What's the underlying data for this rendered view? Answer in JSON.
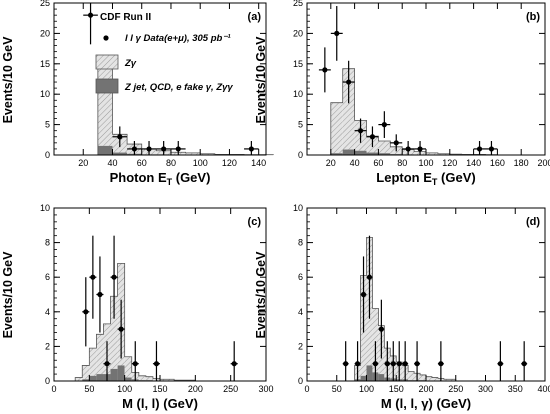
{
  "figure": {
    "legend": {
      "title": "CDF Run II",
      "entries": [
        {
          "label": "l l γ Data(e+μ), 305 pb⁻¹",
          "kind": "data"
        },
        {
          "label": "Zγ",
          "kind": "hatched"
        },
        {
          "label": "Z jet, QCD, e fake γ, Zγγ",
          "kind": "filled"
        }
      ]
    },
    "colors": {
      "signal_fill": "#e4e4e4",
      "background_fill": "#737373",
      "hatch": "#9a9a9a"
    }
  },
  "chart_data": [
    {
      "type": "bar",
      "panel_label": "(a)",
      "xlabel": "Photon E",
      "xlabel_sub": "T",
      "xlabel_unit": " (GeV)",
      "ylabel": "Events/10 GeV",
      "xlim": [
        0,
        145
      ],
      "ylim": [
        0,
        25
      ],
      "xticks": [
        20,
        40,
        60,
        80,
        100,
        120,
        140
      ],
      "yticks": [
        0,
        5,
        10,
        15,
        20,
        25
      ],
      "bin_width": 10,
      "bins_start": [
        20,
        30,
        40,
        50,
        60,
        70,
        80,
        90,
        100,
        110,
        120,
        130,
        140
      ],
      "signal_zg": [
        0,
        14.3,
        3.0,
        1.6,
        0.9,
        0.6,
        0.4,
        0.3,
        0.2,
        0.1,
        0.1,
        0.05,
        0.05
      ],
      "background": [
        0,
        1.5,
        0.4,
        0.2,
        0.1,
        0.1,
        0.05,
        0.05,
        0,
        0,
        0,
        0,
        0
      ],
      "data_x": [
        25,
        45,
        55,
        65,
        75,
        85,
        135
      ],
      "data_y": [
        23,
        3,
        1,
        1,
        1,
        1,
        1
      ],
      "data_err": [
        [
          4.8,
          4.8
        ],
        [
          1.7,
          1.7
        ],
        [
          1,
          1.3
        ],
        [
          1,
          1.3
        ],
        [
          1,
          1.3
        ],
        [
          1,
          1.3
        ],
        [
          1,
          1.3
        ]
      ],
      "data_xerr": [
        5,
        5,
        5,
        5,
        5,
        5,
        5
      ]
    },
    {
      "type": "bar",
      "panel_label": "(b)",
      "xlabel": "Lepton E",
      "xlabel_sub": "T",
      "xlabel_unit": " (GeV)",
      "ylabel": "Events/10 GeV",
      "xlim": [
        0,
        200
      ],
      "ylim": [
        0,
        25
      ],
      "xticks": [
        20,
        40,
        60,
        80,
        100,
        120,
        140,
        160,
        180,
        200
      ],
      "yticks": [
        0,
        5,
        10,
        15,
        20,
        25
      ],
      "bin_width": 10,
      "bins_start": [
        10,
        20,
        30,
        40,
        50,
        60,
        70,
        80,
        90,
        100,
        110,
        120,
        130,
        140,
        150
      ],
      "signal_zg": [
        0,
        8.3,
        13.3,
        5.0,
        2.7,
        2.0,
        1.2,
        0.8,
        0.5,
        0.3,
        0.2,
        0.15,
        0.1,
        0.1,
        0.05
      ],
      "background": [
        0,
        0.3,
        0.9,
        0.7,
        0.4,
        0.3,
        0.15,
        0.1,
        0.05,
        0.05,
        0,
        0,
        0,
        0,
        0
      ],
      "data_x": [
        15,
        25,
        35,
        45,
        55,
        65,
        75,
        85,
        95,
        145,
        155
      ],
      "data_y": [
        14,
        20,
        12,
        4,
        3,
        5,
        2,
        1,
        1,
        1,
        1
      ],
      "data_err": [
        [
          3.7,
          3.7
        ],
        [
          4.5,
          4.5
        ],
        [
          3.5,
          3.5
        ],
        [
          2,
          2
        ],
        [
          1.7,
          1.7
        ],
        [
          2.2,
          2.2
        ],
        [
          1.4,
          1.4
        ],
        [
          1,
          1.3
        ],
        [
          1,
          1.3
        ],
        [
          1,
          1.3
        ],
        [
          1,
          1.3
        ]
      ],
      "data_xerr": [
        5,
        5,
        5,
        5,
        5,
        5,
        5,
        5,
        5,
        5,
        5
      ]
    },
    {
      "type": "bar",
      "panel_label": "(c)",
      "xlabel": "M (l, l)",
      "xlabel_sub": "",
      "xlabel_unit": "  (GeV)",
      "ylabel": "Events/10 GeV",
      "xlim": [
        0,
        300
      ],
      "ylim": [
        0,
        10
      ],
      "xticks": [
        0,
        50,
        100,
        150,
        200,
        250,
        300
      ],
      "yticks": [
        0,
        2,
        4,
        6,
        8,
        10
      ],
      "bin_width": 10,
      "bins_start": [
        30,
        40,
        50,
        60,
        70,
        80,
        90,
        100,
        110,
        120,
        130,
        140,
        150,
        160,
        170,
        180,
        190
      ],
      "signal_zg": [
        0.2,
        0.8,
        1.6,
        2.3,
        2.9,
        4.2,
        5.9,
        1.2,
        0.4,
        0.25,
        0.2,
        0.15,
        0.1,
        0.1,
        0.05,
        0.05,
        0.05
      ],
      "background": [
        0,
        0.1,
        0.3,
        0.4,
        0.4,
        0.7,
        0.9,
        0.2,
        0.1,
        0.05,
        0.05,
        0,
        0,
        0,
        0,
        0,
        0
      ],
      "data_x": [
        45,
        55,
        65,
        75,
        85,
        95,
        115,
        145,
        255
      ],
      "data_y": [
        4,
        6,
        5,
        1,
        6,
        3,
        1,
        1,
        1
      ],
      "data_err": [
        [
          2,
          2
        ],
        [
          2.4,
          2.4
        ],
        [
          2.2,
          2.2
        ],
        [
          1,
          1.3
        ],
        [
          2.4,
          2.4
        ],
        [
          1.7,
          1.7
        ],
        [
          1,
          1.3
        ],
        [
          1,
          1.3
        ],
        [
          1,
          1.3
        ]
      ],
      "data_xerr": [
        5,
        5,
        5,
        5,
        5,
        5,
        5,
        5,
        5
      ]
    },
    {
      "type": "bar",
      "panel_label": "(d)",
      "xlabel": "M (l, l, γ)",
      "xlabel_sub": "",
      "xlabel_unit": "  (GeV)",
      "ylabel": "Events/10 GeV",
      "xlim": [
        0,
        400
      ],
      "ylim": [
        0,
        10
      ],
      "xticks": [
        0,
        50,
        100,
        150,
        200,
        250,
        300,
        350,
        400
      ],
      "yticks": [
        0,
        2,
        4,
        6,
        8,
        10
      ],
      "bin_width": 10,
      "bins_start": [
        80,
        90,
        100,
        110,
        120,
        130,
        140,
        150,
        160,
        170,
        180,
        190,
        200,
        210,
        220,
        230,
        240
      ],
      "signal_zg": [
        0.8,
        5.8,
        7.4,
        3.7,
        2.8,
        1.7,
        1.3,
        1.0,
        0.8,
        0.5,
        0.4,
        0.3,
        0.25,
        0.2,
        0.15,
        0.1,
        0.1
      ],
      "background": [
        0.1,
        0.3,
        0.9,
        0.5,
        0.4,
        0.2,
        0.15,
        0.1,
        0.1,
        0.05,
        0.05,
        0.05,
        0,
        0,
        0,
        0,
        0
      ],
      "data_x": [
        65,
        85,
        95,
        105,
        115,
        125,
        135,
        145,
        155,
        165,
        185,
        225,
        325,
        365
      ],
      "data_y": [
        1,
        1,
        5,
        6,
        1,
        3,
        1,
        1,
        1,
        1,
        1,
        1,
        1,
        1
      ],
      "data_err": [
        [
          1,
          1.3
        ],
        [
          1,
          1.3
        ],
        [
          2.2,
          2.2
        ],
        [
          2.4,
          2.4
        ],
        [
          1,
          1.3
        ],
        [
          1.7,
          1.7
        ],
        [
          1,
          1.3
        ],
        [
          1,
          1.3
        ],
        [
          1,
          1.3
        ],
        [
          1,
          1.3
        ],
        [
          1,
          1.3
        ],
        [
          1,
          1.3
        ],
        [
          1,
          1.3
        ],
        [
          1,
          1.3
        ]
      ],
      "data_xerr": [
        5,
        5,
        5,
        5,
        5,
        5,
        5,
        5,
        5,
        5,
        5,
        5,
        5,
        5
      ]
    }
  ]
}
